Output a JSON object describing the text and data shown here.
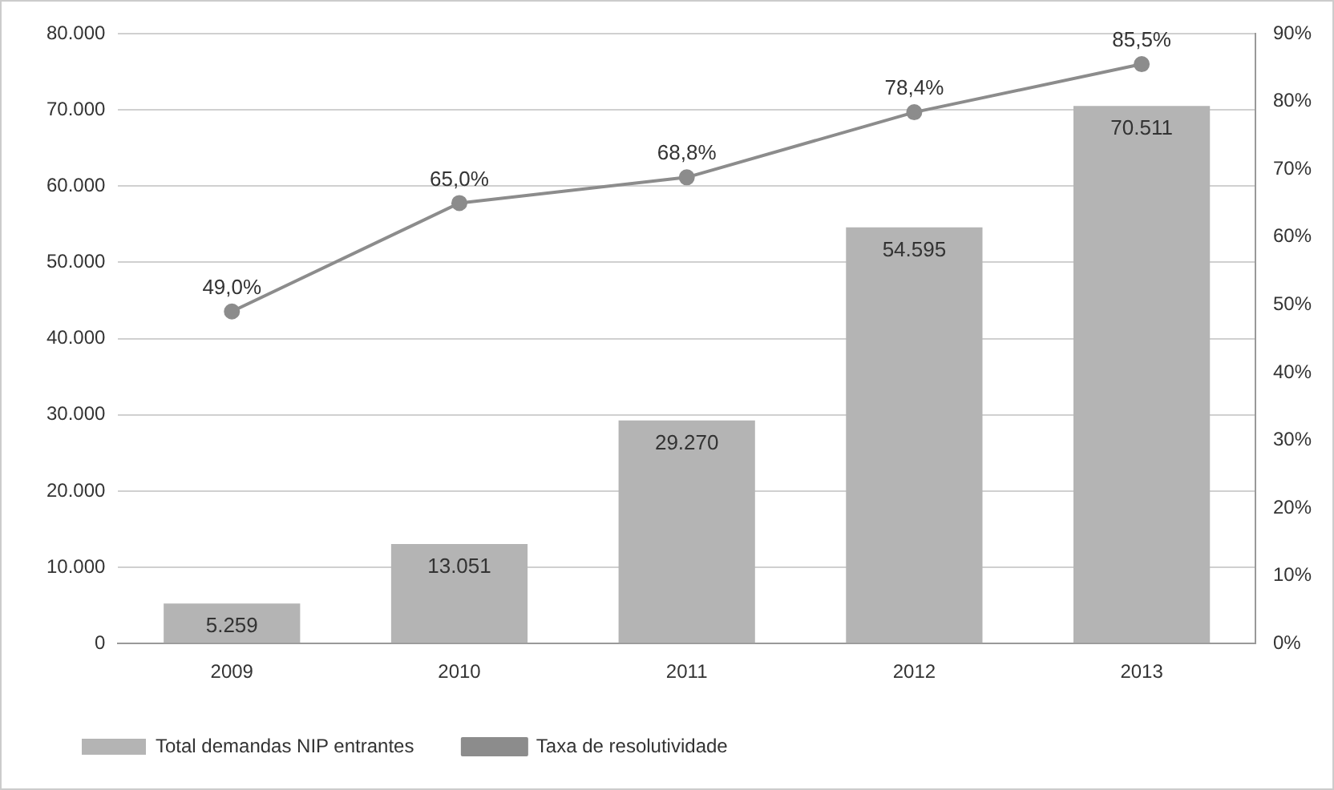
{
  "chart_data": {
    "type": "bar",
    "categories": [
      "2009",
      "2010",
      "2011",
      "2012",
      "2013"
    ],
    "series": [
      {
        "name": "Total demandas NIP entrantes",
        "color": "#b4b4b4",
        "values": [
          5259,
          13051,
          29270,
          54595,
          70511
        ],
        "value_labels": [
          "5.259",
          "13.051",
          "29.270",
          "54.595",
          "70.511"
        ]
      },
      {
        "name": "Taxa de resolutividade",
        "type": "line",
        "axis": "y2",
        "color": "#8c8c8c",
        "marker": "circle",
        "values": [
          49.0,
          65.0,
          68.8,
          78.4,
          85.5
        ],
        "value_labels": [
          "49,0%",
          "65,0%",
          "68,8%",
          "78,4%",
          "85,5%"
        ]
      }
    ],
    "ylim": [
      0,
      80000
    ],
    "yticks": [
      {
        "value": 0,
        "label": "0"
      },
      {
        "value": 10000,
        "label": "10.000"
      },
      {
        "value": 20000,
        "label": "20.000"
      },
      {
        "value": 30000,
        "label": "30.000"
      },
      {
        "value": 40000,
        "label": "40.000"
      },
      {
        "value": 50000,
        "label": "50.000"
      },
      {
        "value": 60000,
        "label": "60.000"
      },
      {
        "value": 70000,
        "label": "70.000"
      },
      {
        "value": 80000,
        "label": "80.000"
      }
    ],
    "y2lim": [
      0,
      90
    ],
    "y2ticks": [
      {
        "value": 0,
        "label": "0%"
      },
      {
        "value": 10,
        "label": "10%"
      },
      {
        "value": 20,
        "label": "20%"
      },
      {
        "value": 30,
        "label": "30%"
      },
      {
        "value": 40,
        "label": "40%"
      },
      {
        "value": 50,
        "label": "50%"
      },
      {
        "value": 60,
        "label": "60%"
      },
      {
        "value": 70,
        "label": "70%"
      },
      {
        "value": 80,
        "label": "80%"
      },
      {
        "value": 90,
        "label": "90%"
      }
    ],
    "grid": "y",
    "legend": "bottom left"
  }
}
